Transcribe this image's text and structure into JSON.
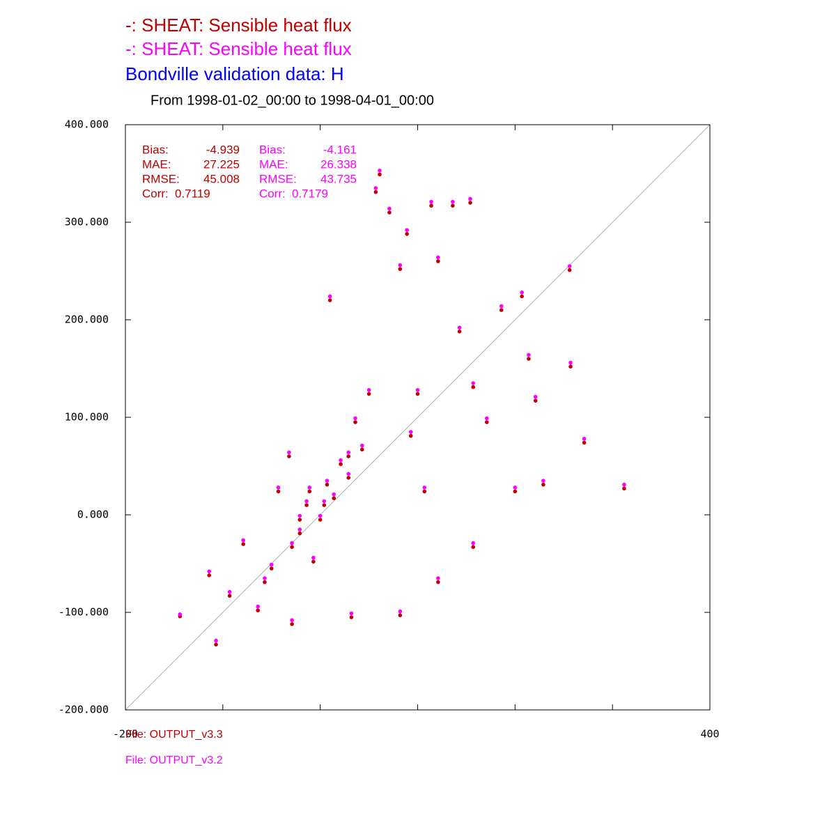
{
  "chart_data": {
    "type": "scatter",
    "titles": [
      {
        "text": "-:  SHEAT: Sensible heat flux",
        "color": "#c00000"
      },
      {
        "text": "-:  SHEAT: Sensible heat flux",
        "color": "#ff00ff"
      },
      {
        "text": "Bondville validation data:  H",
        "color": "#0000ff"
      }
    ],
    "subtitle": "From 1998-01-02_00:00 to 1998-04-01_00:00",
    "xlim": [
      -200,
      400
    ],
    "ylim": [
      -200,
      400
    ],
    "xticks": [
      -200,
      400
    ],
    "xminor_ticks": [
      -100,
      0,
      100,
      200,
      300
    ],
    "yticks": [
      {
        "value": -200,
        "label": "-200.000"
      },
      {
        "value": -100,
        "label": "-100.000"
      },
      {
        "value": 0,
        "label": "0.000"
      },
      {
        "value": 100,
        "label": "100.000"
      },
      {
        "value": 200,
        "label": "200.000"
      },
      {
        "value": 300,
        "label": "300.000"
      },
      {
        "value": 400,
        "label": "400.000"
      }
    ],
    "identity_line": true,
    "series": [
      {
        "name": "File: OUTPUT_v3.3",
        "color": "#c00000",
        "stats": [
          {
            "label": "Bias:",
            "value": -4.939
          },
          {
            "label": "MAE:",
            "value": 27.225
          },
          {
            "label": "RMSE:",
            "value": 45.008
          },
          {
            "label": "Corr:",
            "value": 0.7119
          }
        ],
        "x": [
          -144,
          -114,
          -107,
          -93,
          -79,
          -64,
          -50,
          -43,
          -32,
          -21,
          -14,
          -7,
          0,
          7,
          14,
          21,
          10,
          29,
          36,
          43,
          50,
          57,
          61,
          71,
          82,
          89,
          93,
          100,
          107,
          114,
          121,
          136,
          143,
          154,
          157,
          171,
          186,
          200,
          207,
          214,
          221,
          229,
          256,
          257,
          271,
          312,
          157,
          82,
          32,
          121,
          -29,
          -21,
          -11,
          -29,
          4,
          29,
          -57
        ],
        "y": [
          -104,
          -62,
          -133,
          -83,
          -30,
          -98,
          -55,
          24,
          60,
          -19,
          10,
          -48,
          -5,
          31,
          17,
          52,
          220,
          60,
          95,
          67,
          124,
          331,
          349,
          310,
          252,
          288,
          81,
          124,
          24,
          317,
          260,
          317,
          188,
          320,
          131,
          95,
          210,
          24,
          224,
          160,
          117,
          31,
          251,
          152,
          74,
          27,
          -33,
          -103,
          -105,
          -69,
          -112,
          -5,
          24,
          -33,
          10,
          38,
          -69
        ]
      },
      {
        "name": "File: OUTPUT_v3.2",
        "color": "#ff00ff",
        "stats": [
          {
            "label": "Bias:",
            "value": -4.161
          },
          {
            "label": "MAE:",
            "value": 26.338
          },
          {
            "label": "RMSE:",
            "value": 43.735
          },
          {
            "label": "Corr:",
            "value": 0.7179
          }
        ],
        "x": [
          -144,
          -114,
          -107,
          -93,
          -79,
          -64,
          -50,
          -43,
          -32,
          -21,
          -14,
          -7,
          0,
          7,
          14,
          21,
          10,
          29,
          36,
          43,
          50,
          57,
          61,
          71,
          82,
          89,
          93,
          100,
          107,
          114,
          121,
          136,
          143,
          154,
          157,
          171,
          186,
          200,
          207,
          214,
          221,
          229,
          256,
          257,
          271,
          312,
          157,
          82,
          32,
          121,
          -29,
          -21,
          -11,
          -29,
          4,
          29,
          -57
        ],
        "y": [
          -102,
          -58,
          -129,
          -79,
          -26,
          -94,
          -51,
          28,
          64,
          -15,
          14,
          -44,
          -1,
          35,
          21,
          56,
          224,
          64,
          99,
          71,
          128,
          335,
          353,
          314,
          256,
          292,
          85,
          128,
          28,
          321,
          264,
          321,
          192,
          324,
          135,
          99,
          214,
          28,
          228,
          164,
          121,
          35,
          255,
          156,
          78,
          31,
          -29,
          -99,
          -101,
          -65,
          -108,
          -1,
          28,
          -29,
          14,
          42,
          -65
        ]
      }
    ]
  }
}
